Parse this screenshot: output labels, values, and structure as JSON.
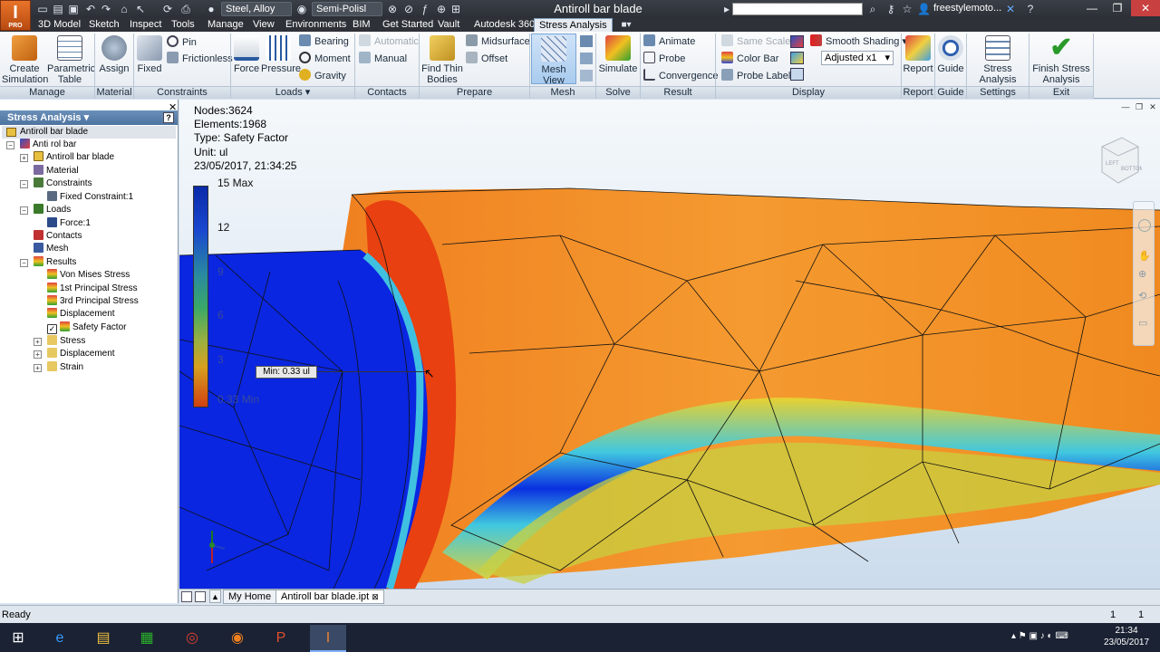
{
  "title_bar": {
    "document_title": "Antiroll bar blade",
    "material": "Steel, Alloy",
    "appearance": "Semi-Polisl",
    "user": "freestylemoto..."
  },
  "app_button": {
    "letter": "I",
    "edition": "PRO"
  },
  "menu_tabs": [
    "3D Model",
    "Sketch",
    "Inspect",
    "Tools",
    "Manage",
    "View",
    "Environments",
    "BIM",
    "Get Started",
    "Vault",
    "Autodesk 360",
    "Stress Analysis"
  ],
  "ribbon": {
    "create_simulation": "Create Simulation",
    "parametric_table": "Parametric Table",
    "assign": "Assign",
    "fixed": "Fixed",
    "pin": "Pin",
    "frictionless": "Frictionless",
    "force": "Force",
    "pressure": "Pressure",
    "bearing": "Bearing",
    "moment": "Moment",
    "gravity": "Gravity",
    "automatic": "Automatic",
    "manual": "Manual",
    "find_thin_bodies": "Find Thin Bodies",
    "midsurface": "Midsurface",
    "offset": "Offset",
    "mesh_view": "Mesh View",
    "simulate": "Simulate",
    "animate": "Animate",
    "probe": "Probe",
    "convergence": "Convergence",
    "same_scale": "Same Scale",
    "color_bar": "Color Bar",
    "probe_labels": "Probe Labels",
    "smooth_shading": "Smooth Shading",
    "adjusted": "Adjusted x1",
    "report": "Report",
    "guide": "Guide",
    "stress_analysis_settings": "Stress Analysis Settings",
    "finish_stress_analysis": "Finish Stress Analysis",
    "panels": {
      "manage": "Manage",
      "material": "Material",
      "constraints": "Constraints",
      "loads": "Loads",
      "contacts": "Contacts",
      "prepare": "Prepare",
      "mesh": "Mesh",
      "solve": "Solve",
      "result": "Result",
      "display": "Display",
      "report": "Report",
      "guide": "Guide",
      "settings": "Settings",
      "exit": "Exit"
    }
  },
  "browser": {
    "header": "Stress Analysis",
    "root": "Antiroll bar blade",
    "nodes": [
      "Anti rol bar",
      "Antiroll bar blade",
      "Material",
      "Constraints",
      "Fixed Constraint:1",
      "Loads",
      "Force:1",
      "Contacts",
      "Mesh",
      "Results",
      "Von Mises Stress",
      "1st Principal Stress",
      "3rd Principal Stress",
      "Displacement",
      "Safety Factor",
      "Stress",
      "Displacement",
      "Strain"
    ]
  },
  "viewport_info": {
    "nodes": "Nodes:3624",
    "elements": "Elements:1968",
    "type": "Type: Safety Factor",
    "unit": "Unit: ul",
    "datetime": "23/05/2017, 21:34:25"
  },
  "legend": {
    "max": "15 Max",
    "ticks": [
      "12",
      "9",
      "6",
      "3"
    ],
    "min": "0.33 Min",
    "min_probe": "Min: 0.33 ul"
  },
  "doc_tabs": {
    "home": "My Home",
    "active": "Antiroll bar blade.ipt"
  },
  "status": {
    "text": "Ready",
    "count_a": "1",
    "count_b": "1"
  },
  "taskbar": {
    "time": "21:34",
    "date": "23/05/2017"
  }
}
